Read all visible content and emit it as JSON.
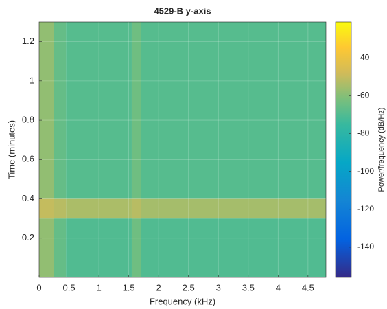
{
  "chart_data": {
    "type": "heatmap",
    "title": "4529-B y-axis",
    "x_label": "Frequency (kHz)",
    "y_label": "Time (minutes)",
    "colorbar_label": "Power/frequency (dB/Hz)",
    "x_edges": [
      0,
      0.25,
      0.45,
      1.55,
      1.7,
      4.8
    ],
    "y_edges": [
      0,
      0.3,
      0.4,
      1.3
    ],
    "z": [
      [
        -58,
        -66,
        -70,
        -64,
        -70
      ],
      [
        -50,
        -52,
        -54,
        -52,
        -55
      ],
      [
        -58,
        -66,
        -69,
        -64,
        -69
      ]
    ],
    "xlim": [
      0,
      4.8
    ],
    "ylim": [
      0,
      1.3
    ],
    "xticks": [
      0,
      0.5,
      1,
      1.5,
      2,
      2.5,
      3,
      3.5,
      4,
      4.5
    ],
    "yticks": [
      0.2,
      0.4,
      0.6,
      0.8,
      1,
      1.2
    ],
    "clim": [
      -156,
      -21
    ],
    "cticks": [
      -140,
      -120,
      -100,
      -80,
      -60,
      -40
    ],
    "colormap": "parula",
    "grid": true
  }
}
